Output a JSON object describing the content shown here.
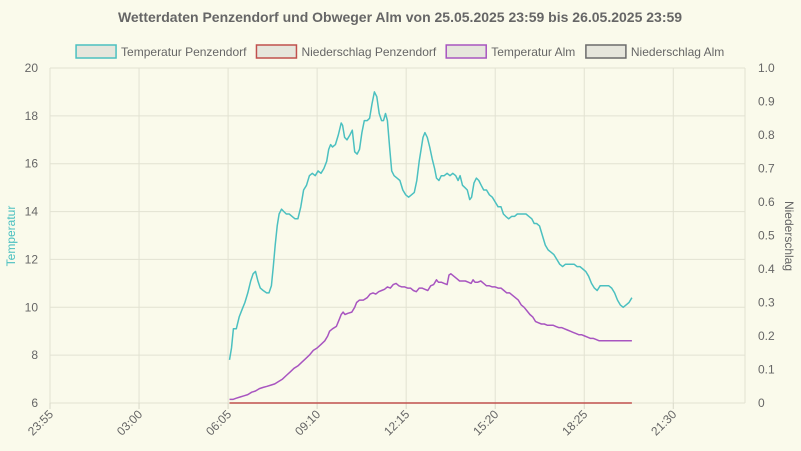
{
  "chart_data": {
    "type": "line",
    "title": "Wetterdaten Penzendorf und Obweger Alm von 25.05.2025 23:59 bis 26.05.2025 23:59",
    "x_tick_labels": [
      "23:55",
      "03:00",
      "06:05",
      "09:10",
      "12:15",
      "15:20",
      "18:25",
      "21:30"
    ],
    "x_tick_minutes": [
      1435,
      1620,
      1805,
      1990,
      2175,
      2360,
      2545,
      2730
    ],
    "x_range_minutes": [
      1435,
      2879
    ],
    "y_left": {
      "label": "Temperatur",
      "range": [
        6,
        20
      ],
      "ticks": [
        6,
        8,
        10,
        12,
        14,
        16,
        18,
        20
      ]
    },
    "y_right": {
      "label": "Niederschlag",
      "range": [
        0,
        1
      ],
      "ticks": [
        "0",
        "0.1",
        "0.2",
        "0.3",
        "0.4",
        "0.5",
        "0.6",
        "0.7",
        "0.8",
        "0.9",
        "1.0"
      ]
    },
    "legend_position": "top",
    "grid": true,
    "series": [
      {
        "name": "Temperatur Penzendorf",
        "axis": "left",
        "color": "#4bc0c0",
        "fill": "#e6e6dc",
        "points": [
          [
            1808,
            7.8
          ],
          [
            1812,
            8.3
          ],
          [
            1816,
            9.1
          ],
          [
            1822,
            9.1
          ],
          [
            1828,
            9.6
          ],
          [
            1834,
            9.9
          ],
          [
            1840,
            10.2
          ],
          [
            1846,
            10.6
          ],
          [
            1852,
            11.1
          ],
          [
            1857,
            11.4
          ],
          [
            1862,
            11.5
          ],
          [
            1867,
            11.1
          ],
          [
            1872,
            10.8
          ],
          [
            1878,
            10.7
          ],
          [
            1885,
            10.6
          ],
          [
            1890,
            10.6
          ],
          [
            1895,
            10.9
          ],
          [
            1899,
            11.7
          ],
          [
            1903,
            12.6
          ],
          [
            1907,
            13.4
          ],
          [
            1911,
            13.9
          ],
          [
            1916,
            14.1
          ],
          [
            1921,
            14.0
          ],
          [
            1926,
            13.9
          ],
          [
            1932,
            13.9
          ],
          [
            1938,
            13.8
          ],
          [
            1944,
            13.7
          ],
          [
            1950,
            13.7
          ],
          [
            1956,
            14.2
          ],
          [
            1962,
            14.9
          ],
          [
            1968,
            15.1
          ],
          [
            1974,
            15.5
          ],
          [
            1980,
            15.6
          ],
          [
            1986,
            15.5
          ],
          [
            1992,
            15.7
          ],
          [
            1998,
            15.6
          ],
          [
            2004,
            15.8
          ],
          [
            2010,
            16.1
          ],
          [
            2014,
            16.6
          ],
          [
            2018,
            16.8
          ],
          [
            2022,
            16.7
          ],
          [
            2028,
            16.8
          ],
          [
            2034,
            17.2
          ],
          [
            2040,
            17.7
          ],
          [
            2043,
            17.6
          ],
          [
            2047,
            17.1
          ],
          [
            2052,
            17.0
          ],
          [
            2058,
            17.2
          ],
          [
            2063,
            17.4
          ],
          [
            2068,
            16.5
          ],
          [
            2073,
            16.4
          ],
          [
            2078,
            16.6
          ],
          [
            2083,
            17.3
          ],
          [
            2088,
            17.8
          ],
          [
            2094,
            17.8
          ],
          [
            2099,
            17.9
          ],
          [
            2104,
            18.5
          ],
          [
            2109,
            19.0
          ],
          [
            2114,
            18.8
          ],
          [
            2119,
            18.1
          ],
          [
            2124,
            17.8
          ],
          [
            2128,
            17.8
          ],
          [
            2132,
            18.1
          ],
          [
            2136,
            17.8
          ],
          [
            2141,
            16.6
          ],
          [
            2145,
            15.7
          ],
          [
            2150,
            15.5
          ],
          [
            2156,
            15.4
          ],
          [
            2162,
            15.3
          ],
          [
            2168,
            14.9
          ],
          [
            2174,
            14.7
          ],
          [
            2180,
            14.6
          ],
          [
            2186,
            14.7
          ],
          [
            2192,
            14.8
          ],
          [
            2197,
            15.3
          ],
          [
            2202,
            16.1
          ],
          [
            2206,
            16.6
          ],
          [
            2210,
            17.1
          ],
          [
            2214,
            17.3
          ],
          [
            2219,
            17.1
          ],
          [
            2224,
            16.7
          ],
          [
            2229,
            16.2
          ],
          [
            2234,
            15.8
          ],
          [
            2238,
            15.4
          ],
          [
            2243,
            15.3
          ],
          [
            2248,
            15.5
          ],
          [
            2254,
            15.5
          ],
          [
            2260,
            15.6
          ],
          [
            2266,
            15.5
          ],
          [
            2272,
            15.6
          ],
          [
            2278,
            15.5
          ],
          [
            2283,
            15.3
          ],
          [
            2287,
            15.5
          ],
          [
            2292,
            15.1
          ],
          [
            2297,
            15.0
          ],
          [
            2302,
            14.9
          ],
          [
            2307,
            14.5
          ],
          [
            2311,
            14.6
          ],
          [
            2316,
            15.2
          ],
          [
            2321,
            15.4
          ],
          [
            2326,
            15.3
          ],
          [
            2331,
            15.1
          ],
          [
            2336,
            14.9
          ],
          [
            2342,
            14.9
          ],
          [
            2348,
            14.7
          ],
          [
            2354,
            14.6
          ],
          [
            2360,
            14.4
          ],
          [
            2366,
            14.2
          ],
          [
            2372,
            14.2
          ],
          [
            2377,
            13.9
          ],
          [
            2382,
            13.8
          ],
          [
            2388,
            13.7
          ],
          [
            2394,
            13.8
          ],
          [
            2400,
            13.8
          ],
          [
            2406,
            13.9
          ],
          [
            2412,
            13.9
          ],
          [
            2418,
            13.9
          ],
          [
            2424,
            13.9
          ],
          [
            2430,
            13.8
          ],
          [
            2436,
            13.7
          ],
          [
            2441,
            13.5
          ],
          [
            2446,
            13.5
          ],
          [
            2452,
            13.4
          ],
          [
            2458,
            13.0
          ],
          [
            2464,
            12.6
          ],
          [
            2470,
            12.4
          ],
          [
            2476,
            12.3
          ],
          [
            2482,
            12.2
          ],
          [
            2488,
            12.0
          ],
          [
            2494,
            11.8
          ],
          [
            2500,
            11.7
          ],
          [
            2506,
            11.8
          ],
          [
            2512,
            11.8
          ],
          [
            2518,
            11.8
          ],
          [
            2524,
            11.8
          ],
          [
            2530,
            11.7
          ],
          [
            2536,
            11.7
          ],
          [
            2542,
            11.6
          ],
          [
            2548,
            11.5
          ],
          [
            2554,
            11.3
          ],
          [
            2560,
            11.0
          ],
          [
            2566,
            10.8
          ],
          [
            2572,
            10.7
          ],
          [
            2578,
            10.9
          ],
          [
            2584,
            10.9
          ],
          [
            2590,
            10.9
          ],
          [
            2596,
            10.9
          ],
          [
            2602,
            10.8
          ],
          [
            2608,
            10.6
          ],
          [
            2614,
            10.3
          ],
          [
            2620,
            10.1
          ],
          [
            2626,
            10.0
          ],
          [
            2632,
            10.1
          ],
          [
            2638,
            10.2
          ],
          [
            2644,
            10.4
          ]
        ]
      },
      {
        "name": "Niederschlag Penzendorf",
        "axis": "right",
        "color": "#c0504d",
        "fill": "#e6e6dc",
        "points": [
          [
            1808,
            0
          ],
          [
            2644,
            0
          ]
        ]
      },
      {
        "name": "Temperatur Alm",
        "axis": "left",
        "color": "#a855c0",
        "fill": "#e6e6dc",
        "points": [
          [
            1808,
            6.15
          ],
          [
            1815,
            6.15
          ],
          [
            1822,
            6.2
          ],
          [
            1830,
            6.25
          ],
          [
            1838,
            6.3
          ],
          [
            1846,
            6.35
          ],
          [
            1854,
            6.45
          ],
          [
            1862,
            6.5
          ],
          [
            1870,
            6.6
          ],
          [
            1878,
            6.65
          ],
          [
            1886,
            6.7
          ],
          [
            1894,
            6.75
          ],
          [
            1902,
            6.8
          ],
          [
            1910,
            6.9
          ],
          [
            1918,
            7.0
          ],
          [
            1926,
            7.15
          ],
          [
            1934,
            7.3
          ],
          [
            1942,
            7.45
          ],
          [
            1950,
            7.55
          ],
          [
            1958,
            7.7
          ],
          [
            1966,
            7.85
          ],
          [
            1974,
            8.0
          ],
          [
            1982,
            8.2
          ],
          [
            1990,
            8.3
          ],
          [
            1998,
            8.45
          ],
          [
            2006,
            8.6
          ],
          [
            2012,
            8.8
          ],
          [
            2016,
            9.0
          ],
          [
            2022,
            9.1
          ],
          [
            2030,
            9.2
          ],
          [
            2036,
            9.5
          ],
          [
            2040,
            9.7
          ],
          [
            2044,
            9.8
          ],
          [
            2048,
            9.7
          ],
          [
            2054,
            9.75
          ],
          [
            2062,
            9.8
          ],
          [
            2068,
            10.0
          ],
          [
            2072,
            10.2
          ],
          [
            2078,
            10.3
          ],
          [
            2086,
            10.3
          ],
          [
            2094,
            10.4
          ],
          [
            2100,
            10.55
          ],
          [
            2106,
            10.6
          ],
          [
            2112,
            10.55
          ],
          [
            2118,
            10.65
          ],
          [
            2124,
            10.7
          ],
          [
            2130,
            10.75
          ],
          [
            2136,
            10.85
          ],
          [
            2142,
            10.8
          ],
          [
            2148,
            10.95
          ],
          [
            2154,
            11.0
          ],
          [
            2160,
            10.9
          ],
          [
            2166,
            10.85
          ],
          [
            2172,
            10.85
          ],
          [
            2178,
            10.8
          ],
          [
            2184,
            10.8
          ],
          [
            2190,
            10.7
          ],
          [
            2196,
            10.65
          ],
          [
            2202,
            10.8
          ],
          [
            2208,
            10.8
          ],
          [
            2214,
            10.75
          ],
          [
            2220,
            10.7
          ],
          [
            2226,
            10.9
          ],
          [
            2232,
            10.95
          ],
          [
            2238,
            11.15
          ],
          [
            2242,
            11.05
          ],
          [
            2248,
            11.05
          ],
          [
            2254,
            11.0
          ],
          [
            2260,
            10.95
          ],
          [
            2264,
            11.35
          ],
          [
            2268,
            11.4
          ],
          [
            2274,
            11.3
          ],
          [
            2280,
            11.2
          ],
          [
            2286,
            11.1
          ],
          [
            2292,
            11.1
          ],
          [
            2298,
            11.1
          ],
          [
            2304,
            11.05
          ],
          [
            2310,
            11.0
          ],
          [
            2314,
            11.15
          ],
          [
            2318,
            11.05
          ],
          [
            2324,
            11.05
          ],
          [
            2330,
            11.1
          ],
          [
            2336,
            11.0
          ],
          [
            2342,
            10.9
          ],
          [
            2348,
            10.9
          ],
          [
            2354,
            10.85
          ],
          [
            2360,
            10.85
          ],
          [
            2366,
            10.8
          ],
          [
            2372,
            10.8
          ],
          [
            2378,
            10.7
          ],
          [
            2384,
            10.6
          ],
          [
            2390,
            10.6
          ],
          [
            2396,
            10.5
          ],
          [
            2402,
            10.4
          ],
          [
            2408,
            10.3
          ],
          [
            2414,
            10.1
          ],
          [
            2420,
            10.0
          ],
          [
            2426,
            9.85
          ],
          [
            2432,
            9.7
          ],
          [
            2438,
            9.6
          ],
          [
            2444,
            9.4
          ],
          [
            2450,
            9.35
          ],
          [
            2456,
            9.3
          ],
          [
            2462,
            9.3
          ],
          [
            2468,
            9.25
          ],
          [
            2474,
            9.25
          ],
          [
            2480,
            9.25
          ],
          [
            2486,
            9.2
          ],
          [
            2492,
            9.15
          ],
          [
            2498,
            9.15
          ],
          [
            2504,
            9.1
          ],
          [
            2510,
            9.05
          ],
          [
            2516,
            9.0
          ],
          [
            2522,
            8.95
          ],
          [
            2528,
            8.9
          ],
          [
            2534,
            8.85
          ],
          [
            2540,
            8.85
          ],
          [
            2546,
            8.8
          ],
          [
            2552,
            8.75
          ],
          [
            2558,
            8.7
          ],
          [
            2564,
            8.7
          ],
          [
            2570,
            8.65
          ],
          [
            2576,
            8.6
          ],
          [
            2582,
            8.6
          ],
          [
            2588,
            8.6
          ],
          [
            2594,
            8.6
          ],
          [
            2600,
            8.6
          ],
          [
            2606,
            8.6
          ],
          [
            2612,
            8.6
          ],
          [
            2618,
            8.6
          ],
          [
            2624,
            8.6
          ],
          [
            2630,
            8.6
          ],
          [
            2636,
            8.6
          ],
          [
            2644,
            8.6
          ]
        ]
      },
      {
        "name": "Niederschlag Alm",
        "axis": "right",
        "color": "#6b6b6b",
        "fill": "#e6e6dc",
        "points": []
      }
    ]
  }
}
